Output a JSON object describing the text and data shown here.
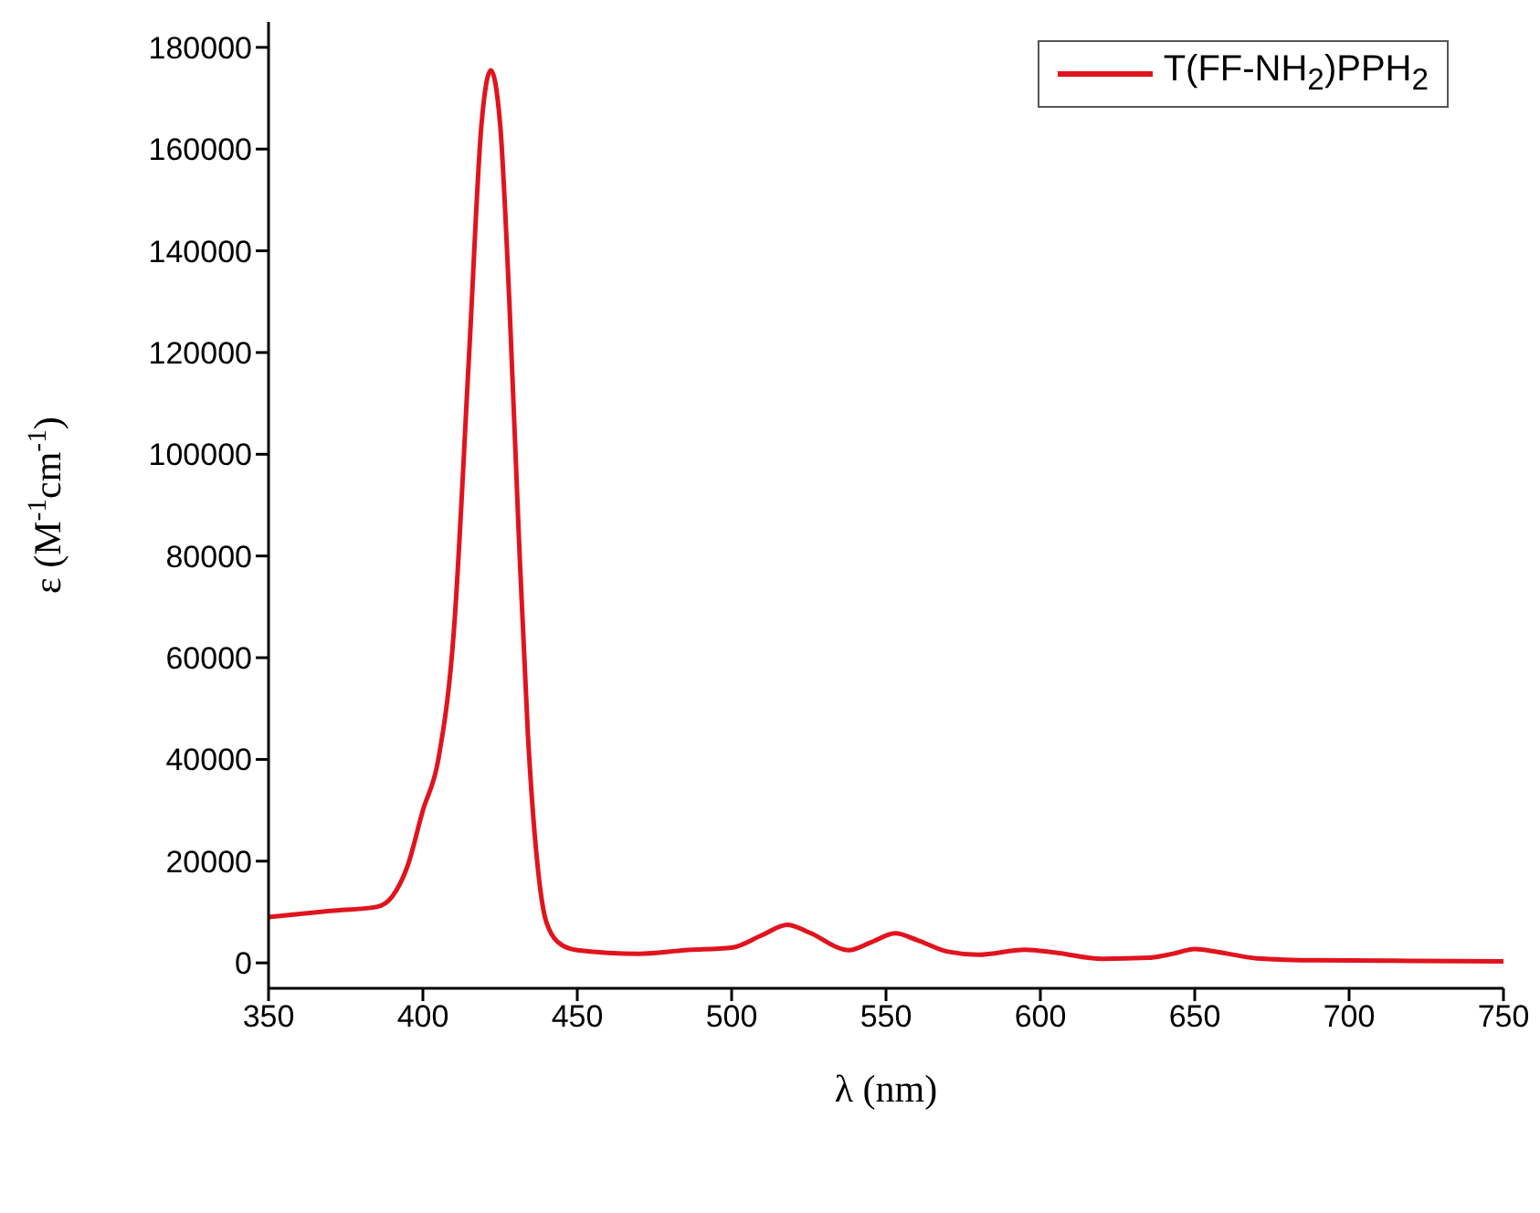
{
  "chart_data": {
    "type": "line",
    "xlabel": "λ (nm)",
    "ylabel": "ε (M$^{-1}$cm$^{-1}$)",
    "x": [
      350,
      370,
      385,
      390,
      395,
      400,
      405,
      410,
      415,
      419,
      422,
      425,
      428,
      431,
      434,
      437,
      440,
      445,
      450,
      470,
      485,
      500,
      510,
      518,
      525,
      538,
      545,
      553,
      560,
      570,
      580,
      595,
      605,
      620,
      635,
      643,
      650,
      657,
      670,
      690,
      720,
      750
    ],
    "series": [
      {
        "name": "T(FF-NH$_{2}$)PPH$_{2}$",
        "color": "#e0141e",
        "values": [
          9000,
          10200,
          11000,
          13000,
          19000,
          30000,
          40000,
          65000,
          120000,
          165000,
          175500,
          165000,
          130000,
          85000,
          45000,
          20000,
          8000,
          3500,
          2500,
          1800,
          2500,
          3000,
          5500,
          7500,
          6000,
          2500,
          4000,
          5800,
          4500,
          2200,
          1600,
          2600,
          2000,
          800,
          1000,
          1800,
          2700,
          2200,
          900,
          500,
          400,
          300
        ]
      }
    ],
    "xlim": [
      350,
      750
    ],
    "xticks": [
      350,
      400,
      450,
      500,
      550,
      600,
      650,
      700,
      750
    ],
    "ylim": [
      -5000,
      185000
    ],
    "yticks": [
      0,
      20000,
      40000,
      60000,
      80000,
      100000,
      120000,
      140000,
      160000,
      180000
    ],
    "legend": "top right"
  }
}
